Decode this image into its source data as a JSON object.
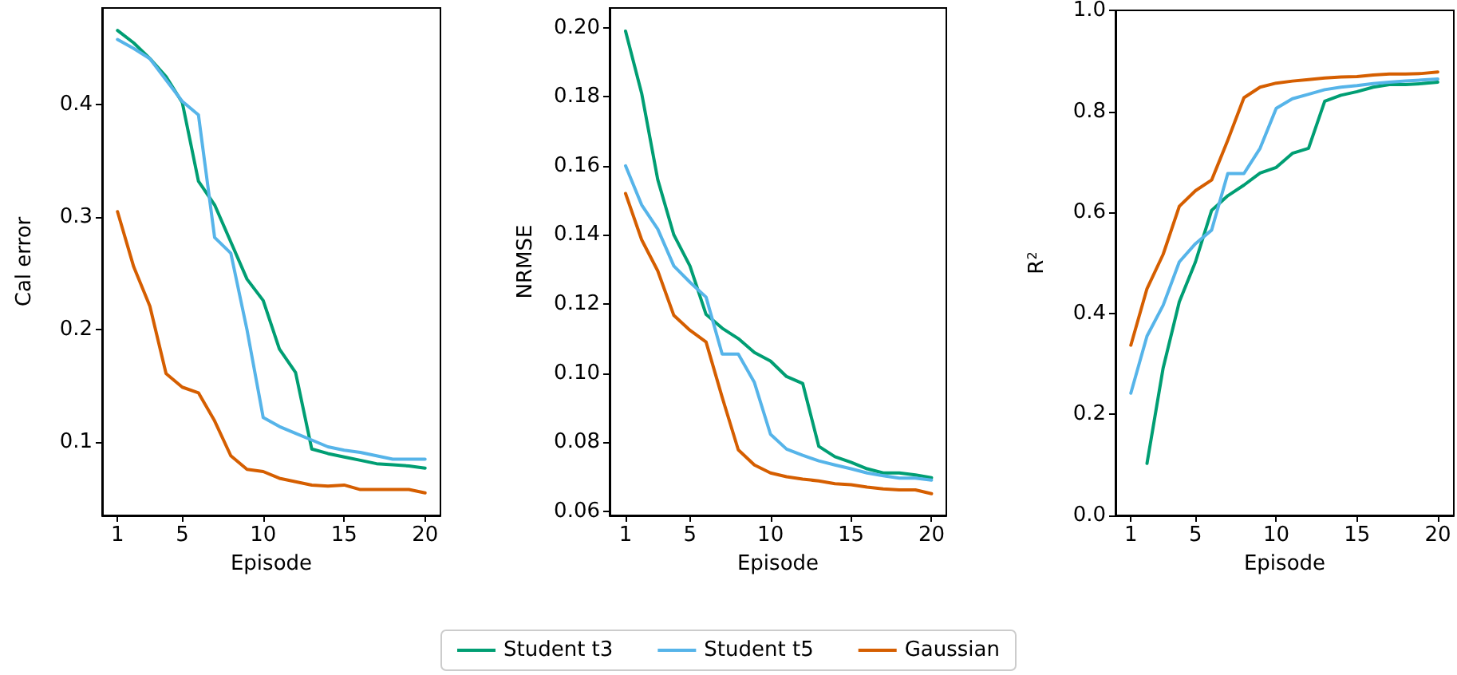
{
  "chart_data": [
    {
      "type": "line",
      "xlabel": "Episode",
      "ylabel": "Cal error",
      "x": [
        1,
        2,
        3,
        4,
        5,
        6,
        7,
        8,
        9,
        10,
        11,
        12,
        13,
        14,
        15,
        16,
        17,
        18,
        19,
        20
      ],
      "xlim": [
        0.05,
        20.95
      ],
      "xticks": [
        1,
        5,
        10,
        15,
        20
      ],
      "ylim": [
        0.035,
        0.486
      ],
      "yticks": [
        0.1,
        0.2,
        0.3,
        0.4
      ],
      "legend": "bottom",
      "grid": false,
      "series": [
        {
          "name": "Student t3",
          "color": "#009e73",
          "values": [
            0.466,
            0.455,
            0.441,
            0.425,
            0.402,
            0.332,
            0.311,
            0.278,
            0.245,
            0.226,
            0.183,
            0.162,
            0.094,
            0.09,
            0.087,
            0.084,
            0.081,
            0.08,
            0.079,
            0.077
          ]
        },
        {
          "name": "Student t5",
          "color": "#56b4e9",
          "values": [
            0.458,
            0.45,
            0.441,
            0.422,
            0.403,
            0.391,
            0.282,
            0.268,
            0.2,
            0.122,
            0.114,
            0.108,
            0.102,
            0.096,
            0.093,
            0.091,
            0.088,
            0.085,
            0.085,
            0.085
          ]
        },
        {
          "name": "Gaussian",
          "color": "#d55e00",
          "values": [
            0.305,
            0.256,
            0.221,
            0.161,
            0.149,
            0.144,
            0.119,
            0.088,
            0.076,
            0.074,
            0.068,
            0.065,
            0.062,
            0.061,
            0.062,
            0.058,
            0.058,
            0.058,
            0.058,
            0.055
          ]
        }
      ]
    },
    {
      "type": "line",
      "xlabel": "Episode",
      "ylabel": "NRMSE",
      "x": [
        1,
        2,
        3,
        4,
        5,
        6,
        7,
        8,
        9,
        10,
        11,
        12,
        13,
        14,
        15,
        16,
        17,
        18,
        19,
        20
      ],
      "xlim": [
        0.01,
        20.92
      ],
      "xticks": [
        1,
        5,
        10,
        15,
        20
      ],
      "ylim": [
        0.0588,
        0.2057
      ],
      "yticks": [
        {
          "value": 0.06,
          "label": "0.06"
        },
        {
          "value": 0.08,
          "label": "0.08"
        },
        {
          "value": 0.1,
          "label": "0.10"
        },
        {
          "value": 0.12,
          "label": "0.12"
        },
        {
          "value": 0.14,
          "label": "0.14"
        },
        {
          "value": 0.16,
          "label": "0.16"
        },
        {
          "value": 0.18,
          "label": "0.18"
        },
        {
          "value": 0.2,
          "label": "0.20"
        }
      ],
      "grid": false,
      "series": [
        {
          "color": "#009e73",
          "values": [
            0.199,
            0.181,
            0.156,
            0.14,
            0.131,
            0.117,
            0.113,
            0.11,
            0.106,
            0.1035,
            0.099,
            0.097,
            0.0788,
            0.0758,
            0.0742,
            0.0723,
            0.0711,
            0.0711,
            0.0705,
            0.0697
          ]
        },
        {
          "color": "#56b4e9",
          "values": [
            0.16,
            0.1487,
            0.1417,
            0.131,
            0.1263,
            0.122,
            0.1055,
            0.1055,
            0.0973,
            0.0823,
            0.078,
            0.0762,
            0.0746,
            0.0734,
            0.0723,
            0.0711,
            0.0703,
            0.0696,
            0.0696,
            0.069
          ]
        },
        {
          "color": "#d55e00",
          "values": [
            0.152,
            0.1386,
            0.1296,
            0.1167,
            0.1124,
            0.109,
            0.093,
            0.0778,
            0.0734,
            0.0711,
            0.07,
            0.0693,
            0.0688,
            0.068,
            0.0677,
            0.067,
            0.0665,
            0.0662,
            0.0662,
            0.0651
          ]
        }
      ]
    },
    {
      "type": "line",
      "xlabel": "Episode",
      "ylabel": "R$^{2}$",
      "x": [
        1,
        2,
        3,
        4,
        5,
        6,
        7,
        8,
        9,
        10,
        11,
        12,
        13,
        14,
        15,
        16,
        17,
        18,
        19,
        20
      ],
      "xlim": [
        0.05,
        20.99
      ],
      "xticks": [
        1,
        5,
        10,
        15,
        20
      ],
      "ylim": [
        0,
        1
      ],
      "yticks": [
        {
          "value": 0,
          "label": "0.0"
        },
        {
          "value": 0.2,
          "label": "0.2"
        },
        {
          "value": 0.4,
          "label": "0.4"
        },
        {
          "value": 0.6,
          "label": "0.6"
        },
        {
          "value": 0.8,
          "label": "0.8"
        },
        {
          "value": 1,
          "label": "1.0"
        }
      ],
      "grid": false,
      "series": [
        {
          "color": "#009e73",
          "values": [
            null,
            0.103,
            0.292,
            0.423,
            0.502,
            0.604,
            0.633,
            0.654,
            0.678,
            0.689,
            0.717,
            0.727,
            0.82,
            0.832,
            0.839,
            0.848,
            0.853,
            0.853,
            0.855,
            0.858
          ]
        },
        {
          "color": "#56b4e9",
          "values": [
            0.242,
            0.355,
            0.416,
            0.502,
            0.538,
            0.565,
            0.677,
            0.677,
            0.727,
            0.806,
            0.825,
            0.834,
            0.843,
            0.848,
            0.851,
            0.855,
            0.858,
            0.86,
            0.862,
            0.864
          ]
        },
        {
          "color": "#d55e00",
          "values": [
            0.337,
            0.449,
            0.517,
            0.612,
            0.643,
            0.664,
            0.743,
            0.827,
            0.848,
            0.856,
            0.86,
            0.863,
            0.866,
            0.868,
            0.869,
            0.872,
            0.874,
            0.874,
            0.875,
            0.878
          ]
        }
      ]
    }
  ]
}
